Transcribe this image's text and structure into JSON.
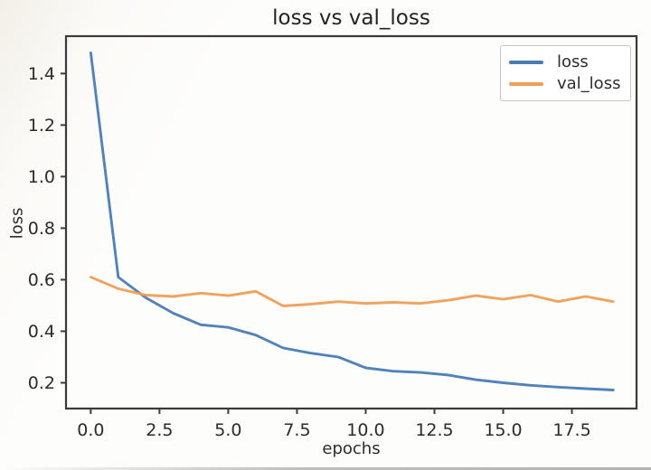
{
  "style": {
    "background": "#fdfdfc",
    "axis_color": "#3b3b3b",
    "text_color": "#2b2b2b",
    "title_color": "#232323",
    "legend_border": "#c6c6c6"
  },
  "chart_data": {
    "type": "line",
    "title": "loss vs val_loss",
    "xlabel": "epochs",
    "ylabel": "loss",
    "x": [
      0,
      1,
      2,
      3,
      4,
      5,
      6,
      7,
      8,
      9,
      10,
      11,
      12,
      13,
      14,
      15,
      16,
      17,
      18,
      19
    ],
    "series": [
      {
        "name": "loss",
        "color": "#4a7bb5",
        "values": [
          1.48,
          0.61,
          0.53,
          0.47,
          0.425,
          0.415,
          0.385,
          0.335,
          0.315,
          0.3,
          0.258,
          0.245,
          0.24,
          0.23,
          0.212,
          0.2,
          0.19,
          0.183,
          0.177,
          0.172
        ]
      },
      {
        "name": "val_loss",
        "color": "#ee9e55",
        "values": [
          0.61,
          0.565,
          0.54,
          0.535,
          0.548,
          0.538,
          0.555,
          0.498,
          0.505,
          0.515,
          0.508,
          0.512,
          0.508,
          0.52,
          0.538,
          0.524,
          0.54,
          0.515,
          0.535,
          0.515
        ]
      }
    ],
    "xlim": [
      -0.9,
      19.85
    ],
    "ylim": [
      0.1,
      1.545
    ],
    "x_ticks": [
      {
        "value": 0,
        "label": "0.0"
      },
      {
        "value": 2.5,
        "label": "2.5"
      },
      {
        "value": 5,
        "label": "5.0"
      },
      {
        "value": 7.5,
        "label": "7.5"
      },
      {
        "value": 10,
        "label": "10.0"
      },
      {
        "value": 12.5,
        "label": "12.5"
      },
      {
        "value": 15,
        "label": "15.0"
      },
      {
        "value": 17.5,
        "label": "17.5"
      }
    ],
    "y_ticks": [
      {
        "value": 0.2,
        "label": "0.2"
      },
      {
        "value": 0.4,
        "label": "0.4"
      },
      {
        "value": 0.6,
        "label": "0.6"
      },
      {
        "value": 0.8,
        "label": "0.8"
      },
      {
        "value": 1.0,
        "label": "1.0"
      },
      {
        "value": 1.2,
        "label": "1.2"
      },
      {
        "value": 1.4,
        "label": "1.4"
      }
    ],
    "grid": false,
    "legend": {
      "position": "upper right",
      "entries": [
        "loss",
        "val_loss"
      ]
    }
  }
}
